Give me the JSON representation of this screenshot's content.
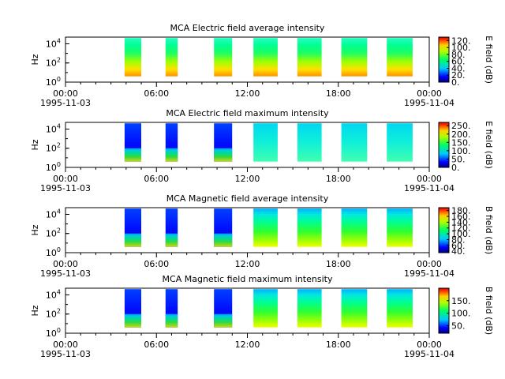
{
  "chart_data": [
    {
      "type": "heatmap",
      "title": "MCA  Electric field average intensity",
      "ylabel": "Hz",
      "y_scale": "log",
      "ylim": [
        1,
        50000
      ],
      "y_ticks": [
        {
          "base": "10",
          "exp": "0"
        },
        {
          "base": "10",
          "exp": "2"
        },
        {
          "base": "10",
          "exp": "4"
        }
      ],
      "x_range": [
        "1995-11-03 00:00",
        "1995-11-04 00:00"
      ],
      "x_ticks": [
        "00:00",
        "06:00",
        "12:00",
        "18:00",
        "00:00"
      ],
      "x_dates": [
        "1995-11-03",
        "1995-11-04"
      ],
      "colorbar": {
        "label": "E field (dB)",
        "ticks": [
          "0.",
          "20.",
          "40.",
          "60.",
          "80.",
          "100.",
          "120."
        ],
        "range": [
          0,
          130
        ]
      },
      "scheme": "lowband",
      "segments": [
        [
          3.9,
          5.0
        ],
        [
          6.6,
          7.4
        ],
        [
          9.8,
          11.0
        ],
        [
          12.4,
          14.0
        ],
        [
          15.3,
          16.9
        ],
        [
          18.2,
          19.9
        ],
        [
          21.2,
          22.9
        ]
      ]
    },
    {
      "type": "heatmap",
      "title": "MCA  Electric field maximum intensity",
      "ylabel": "Hz",
      "y_scale": "log",
      "ylim": [
        1,
        50000
      ],
      "y_ticks": [
        {
          "base": "10",
          "exp": "0"
        },
        {
          "base": "10",
          "exp": "2"
        },
        {
          "base": "10",
          "exp": "4"
        }
      ],
      "x_range": [
        "1995-11-03 00:00",
        "1995-11-04 00:00"
      ],
      "x_ticks": [
        "00:00",
        "06:00",
        "12:00",
        "18:00",
        "00:00"
      ],
      "x_dates": [
        "1995-11-03",
        "1995-11-04"
      ],
      "colorbar": {
        "label": "E field (dB)",
        "ticks": [
          "0.",
          "50.",
          "100.",
          "150.",
          "200.",
          "250."
        ],
        "range": [
          0,
          270
        ]
      },
      "scheme": "uniform",
      "segments": [
        [
          3.9,
          5.0
        ],
        [
          6.6,
          7.4
        ],
        [
          9.8,
          11.0
        ],
        [
          12.4,
          14.0
        ],
        [
          15.3,
          16.9
        ],
        [
          18.2,
          19.9
        ],
        [
          21.2,
          22.9
        ]
      ]
    },
    {
      "type": "heatmap",
      "title": "MCA  Magnetic field average intensity",
      "ylabel": "Hz",
      "y_scale": "log",
      "ylim": [
        1,
        50000
      ],
      "y_ticks": [
        {
          "base": "10",
          "exp": "0"
        },
        {
          "base": "10",
          "exp": "2"
        },
        {
          "base": "10",
          "exp": "4"
        }
      ],
      "x_range": [
        "1995-11-03 00:00",
        "1995-11-04 00:00"
      ],
      "x_ticks": [
        "00:00",
        "06:00",
        "12:00",
        "18:00",
        "00:00"
      ],
      "x_dates": [
        "1995-11-03",
        "1995-11-04"
      ],
      "colorbar": {
        "label": "B field (dB)",
        "ticks": [
          "40.",
          "60.",
          "80.",
          "100.",
          "120.",
          "140.",
          "160.",
          "180."
        ],
        "range": [
          35,
          190
        ]
      },
      "scheme": "gradient",
      "segments": [
        [
          3.9,
          5.0
        ],
        [
          6.6,
          7.4
        ],
        [
          9.8,
          11.0
        ],
        [
          12.4,
          14.0
        ],
        [
          15.3,
          16.9
        ],
        [
          18.2,
          19.9
        ],
        [
          21.2,
          22.9
        ]
      ]
    },
    {
      "type": "heatmap",
      "title": "MCA  Magnetic field maximum intensity",
      "ylabel": "Hz",
      "y_scale": "log",
      "ylim": [
        1,
        50000
      ],
      "y_ticks": [
        {
          "base": "10",
          "exp": "0"
        },
        {
          "base": "10",
          "exp": "2"
        },
        {
          "base": "10",
          "exp": "4"
        }
      ],
      "x_range": [
        "1995-11-03 00:00",
        "1995-11-04 00:00"
      ],
      "x_ticks": [
        "00:00",
        "06:00",
        "12:00",
        "18:00",
        "00:00"
      ],
      "x_dates": [
        "1995-11-03",
        "1995-11-04"
      ],
      "colorbar": {
        "label": "B field (dB)",
        "ticks": [
          "50.",
          "100.",
          "150."
        ],
        "range": [
          20,
          200
        ]
      },
      "scheme": "gradient",
      "segments": [
        [
          3.9,
          5.0
        ],
        [
          6.6,
          7.4
        ],
        [
          9.8,
          11.0
        ],
        [
          12.4,
          14.0
        ],
        [
          15.3,
          16.9
        ],
        [
          18.2,
          19.9
        ],
        [
          21.2,
          22.9
        ]
      ]
    }
  ]
}
